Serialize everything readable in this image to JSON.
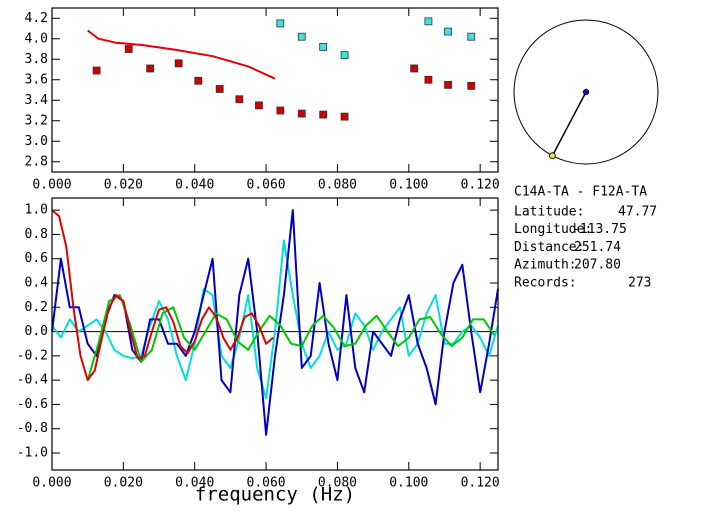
{
  "chart_data": [
    {
      "type": "scatter",
      "xlim": [
        0,
        0.125
      ],
      "xticks": [
        {
          "value": 0,
          "label": "0.000"
        },
        {
          "value": 0.02,
          "label": "0.020"
        },
        {
          "value": 0.04,
          "label": "0.040"
        },
        {
          "value": 0.06,
          "label": "0.060"
        },
        {
          "value": 0.08,
          "label": "0.080"
        },
        {
          "value": 0.1,
          "label": "0.100"
        },
        {
          "value": 0.12,
          "label": "0.120"
        }
      ],
      "ylim": [
        2.7,
        4.3
      ],
      "yticks": [
        2.8,
        {
          "value": 3.0,
          "label": "3.0"
        },
        3.2,
        3.4,
        3.6,
        3.8,
        {
          "value": 4.0,
          "label": "4.0"
        },
        4.2
      ],
      "series": [
        {
          "mode": "line",
          "color": "#e00000",
          "x": [
            0.01,
            0.013,
            0.018,
            0.025,
            0.035,
            0.045,
            0.055,
            0.0625
          ],
          "values": [
            4.08,
            4.0,
            3.96,
            3.94,
            3.89,
            3.83,
            3.73,
            3.61
          ]
        },
        {
          "mode": "markers",
          "color": "#d00000",
          "x": [
            0.0125,
            0.0215,
            0.0275,
            0.0355,
            0.041,
            0.047,
            0.0525,
            0.058,
            0.064,
            0.07,
            0.076,
            0.082,
            0.1015,
            0.1055,
            0.111,
            0.1175
          ],
          "values": [
            3.69,
            3.9,
            3.71,
            3.76,
            3.59,
            3.51,
            3.41,
            3.35,
            3.3,
            3.27,
            3.26,
            3.24,
            3.71,
            3.6,
            3.55,
            3.54
          ]
        },
        {
          "mode": "markers",
          "color": "#40e0e0",
          "x": [
            0.064,
            0.07,
            0.076,
            0.082,
            0.1055,
            0.111,
            0.1175
          ],
          "values": [
            4.15,
            4.02,
            3.92,
            3.84,
            4.17,
            4.07,
            4.02
          ]
        }
      ]
    },
    {
      "type": "line",
      "x_label": "frequency (Hz)",
      "xlim": [
        0,
        0.125
      ],
      "xticks": [
        {
          "value": 0,
          "label": "0.000"
        },
        {
          "value": 0.02,
          "label": "0.020"
        },
        {
          "value": 0.04,
          "label": "0.040"
        },
        {
          "value": 0.06,
          "label": "0.060"
        },
        {
          "value": 0.08,
          "label": "0.080"
        },
        {
          "value": 0.1,
          "label": "0.100"
        },
        {
          "value": 0.12,
          "label": "0.120"
        }
      ],
      "ylim": [
        -1.14,
        1.1
      ],
      "yticks": [
        {
          "value": 1.0,
          "label": "1.0"
        },
        0.8,
        0.6,
        0.4,
        0.2,
        {
          "value": 0.0,
          "label": "0.0"
        },
        -0.2,
        -0.4,
        -0.6,
        -0.8,
        {
          "value": -1.0,
          "label": "-1.0"
        }
      ],
      "x": [
        0,
        0.0025,
        0.005,
        0.0075,
        0.01,
        0.0125,
        0.015,
        0.0175,
        0.02,
        0.0225,
        0.025,
        0.0275,
        0.03,
        0.0325,
        0.035,
        0.0375,
        0.04,
        0.0425,
        0.045,
        0.0475,
        0.05,
        0.0525,
        0.055,
        0.0575,
        0.06,
        0.0625,
        0.065,
        0.0675,
        0.07,
        0.0725,
        0.075,
        0.0775,
        0.08,
        0.0825,
        0.085,
        0.0875,
        0.09,
        0.0925,
        0.095,
        0.0975,
        0.1,
        0.1025,
        0.105,
        0.1075,
        0.11,
        0.1125,
        0.115,
        0.1175,
        0.12,
        0.1225,
        0.125
      ],
      "series": [
        {
          "color": "#00dede",
          "values": [
            0.05,
            -0.05,
            0.1,
            0.0,
            0.05,
            0.1,
            0.0,
            -0.15,
            -0.2,
            -0.22,
            -0.2,
            0.05,
            0.25,
            0.1,
            -0.2,
            -0.4,
            -0.1,
            0.35,
            0.3,
            -0.2,
            -0.3,
            -0.05,
            0.3,
            -0.3,
            -0.55,
            0.0,
            0.75,
            0.3,
            -0.1,
            -0.3,
            -0.2,
            0.0,
            -0.15,
            -0.1,
            0.15,
            0.05,
            -0.15,
            0.0,
            0.1,
            0.2,
            -0.2,
            -0.1,
            0.15,
            0.3,
            -0.1,
            -0.1,
            0.0,
            0.05,
            -0.05,
            -0.2,
            0.05
          ]
        },
        {
          "color": "#0000c0",
          "values": [
            0.0,
            0.6,
            0.2,
            0.2,
            -0.1,
            -0.2,
            0.1,
            0.3,
            0.25,
            -0.15,
            -0.25,
            0.1,
            0.1,
            -0.1,
            -0.1,
            -0.2,
            0.0,
            0.3,
            0.6,
            -0.4,
            -0.5,
            0.3,
            0.6,
            0.0,
            -0.85,
            -0.2,
            0.3,
            1.0,
            -0.3,
            -0.2,
            0.4,
            -0.1,
            -0.4,
            0.3,
            -0.3,
            -0.5,
            0.0,
            -0.1,
            -0.2,
            0.1,
            0.3,
            -0.1,
            -0.3,
            -0.6,
            0.0,
            0.4,
            0.55,
            0.0,
            -0.5,
            -0.1,
            0.35
          ]
        },
        {
          "color": "#00c800",
          "x": [
            0.01,
            0.013,
            0.016,
            0.019,
            0.022,
            0.025,
            0.028,
            0.031,
            0.034,
            0.037,
            0.04,
            0.043,
            0.046,
            0.049,
            0.052,
            0.055,
            0.058,
            0.061,
            0.064,
            0.067,
            0.07,
            0.073,
            0.076,
            0.079,
            0.082,
            0.085,
            0.088,
            0.091,
            0.094,
            0.097,
            0.1,
            0.103,
            0.106,
            0.109,
            0.112,
            0.115,
            0.118,
            0.121,
            0.124
          ],
          "values": [
            -0.4,
            -0.1,
            0.25,
            0.3,
            0.05,
            -0.25,
            -0.15,
            0.15,
            0.2,
            -0.05,
            -0.15,
            0.0,
            0.15,
            0.1,
            -0.08,
            -0.15,
            0.0,
            0.13,
            0.05,
            -0.1,
            -0.12,
            0.05,
            0.13,
            0.03,
            -0.12,
            -0.1,
            0.05,
            0.13,
            0.0,
            -0.12,
            -0.05,
            0.1,
            0.12,
            -0.02,
            -0.12,
            -0.05,
            0.1,
            0.1,
            -0.03
          ]
        },
        {
          "color": "#e00000",
          "x": [
            0,
            0.002,
            0.004,
            0.006,
            0.008,
            0.01,
            0.012,
            0.014,
            0.016,
            0.018,
            0.02,
            0.022,
            0.024,
            0.026,
            0.028,
            0.03,
            0.032,
            0.034,
            0.036,
            0.038,
            0.04,
            0.042,
            0.044,
            0.046,
            0.048,
            0.05,
            0.052,
            0.054,
            0.056,
            0.058,
            0.06,
            0.062
          ],
          "values": [
            1.0,
            0.95,
            0.7,
            0.2,
            -0.2,
            -0.4,
            -0.32,
            -0.05,
            0.2,
            0.3,
            0.25,
            0.0,
            -0.22,
            -0.2,
            0.0,
            0.18,
            0.2,
            0.08,
            -0.12,
            -0.18,
            -0.08,
            0.1,
            0.2,
            0.12,
            -0.05,
            -0.15,
            -0.05,
            0.12,
            0.15,
            0.05,
            -0.1,
            -0.05
          ]
        }
      ]
    }
  ],
  "info": {
    "title": "C14A-TA  -  F12A-TA",
    "fields": [
      {
        "label": "Latitude:",
        "value": "47.77"
      },
      {
        "label": "Longitude:",
        "value": "-113.75"
      },
      {
        "label": "Distance:",
        "value": "251.74"
      },
      {
        "label": "Azimuth:",
        "value": "207.80"
      },
      {
        "label": "Records:",
        "value": "273"
      }
    ]
  }
}
